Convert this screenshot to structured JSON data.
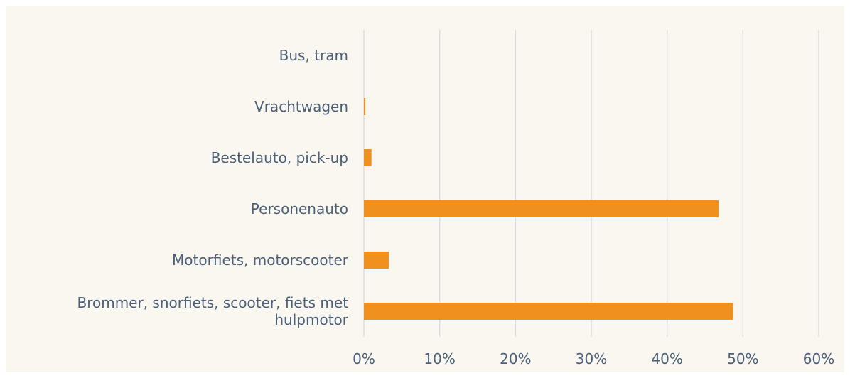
{
  "chart_data": {
    "type": "hbar",
    "categories": [
      "Bus, tram",
      "Vrachtwagen",
      "Bestelauto, pick-up",
      "Personenauto",
      "Motorfiets, motorscooter",
      "Brommer, snorfiets, scooter, fiets met hulpmotor"
    ],
    "values": [
      0,
      0.2,
      1.0,
      46.8,
      3.3,
      48.7
    ],
    "color": "#f0901e",
    "xlim": [
      0,
      60
    ],
    "xticks": [
      {
        "value": 0,
        "label": "0%"
      },
      {
        "value": 10,
        "label": "10%"
      },
      {
        "value": 20,
        "label": "20%"
      },
      {
        "value": 30,
        "label": "30%"
      },
      {
        "value": 40,
        "label": "40%"
      },
      {
        "value": 50,
        "label": "50%"
      },
      {
        "value": 60,
        "label": "60%"
      }
    ],
    "grid": true
  }
}
